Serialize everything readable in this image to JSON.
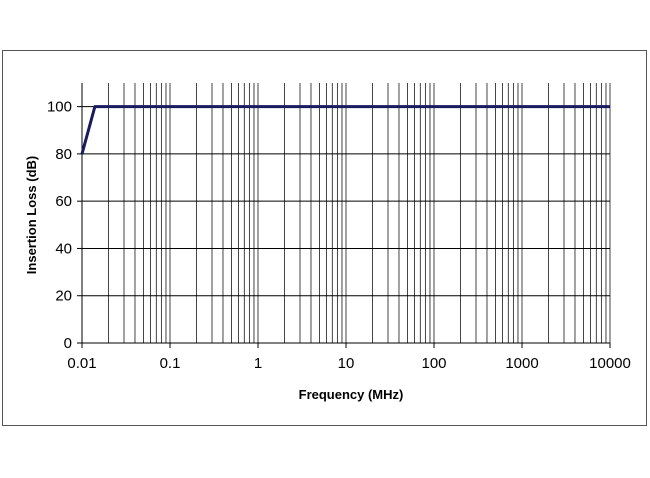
{
  "chart_data": {
    "type": "line",
    "title": "",
    "xlabel": "Frequency (MHz)",
    "ylabel": "Insertion Loss (dB)",
    "xscale": "log",
    "xlim": [
      0.01,
      10000
    ],
    "ylim": [
      0,
      110
    ],
    "xticks": [
      "0.01",
      "0.1",
      "1",
      "10",
      "100",
      "1000",
      "10000"
    ],
    "yticks": [
      "0",
      "20",
      "40",
      "60",
      "80",
      "100"
    ],
    "grid": true,
    "legend": "none",
    "series": [
      {
        "color": "#1a1a5e",
        "x": [
          0.01,
          0.014,
          10000
        ],
        "y": [
          80,
          100,
          100
        ]
      }
    ]
  }
}
